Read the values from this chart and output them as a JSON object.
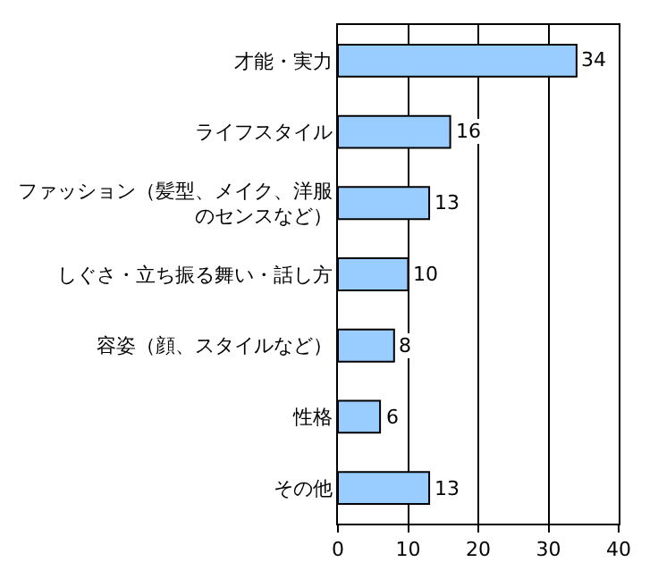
{
  "chart_data": {
    "type": "bar",
    "orientation": "horizontal",
    "categories": [
      "才能・実力",
      "ライフスタイル",
      "ファッション（髪型、メイク、洋服のセンスなど）",
      "しぐさ・立ち振る舞い・話し方",
      "容姿（顔、スタイルなど）",
      "性格",
      "その他"
    ],
    "values": [
      34,
      16,
      13,
      10,
      8,
      6,
      13
    ],
    "color": "#99ccff",
    "xlim": [
      0,
      40
    ],
    "xticks": [
      0,
      10,
      20,
      30,
      40
    ],
    "grid": "x",
    "data_labels": true
  }
}
